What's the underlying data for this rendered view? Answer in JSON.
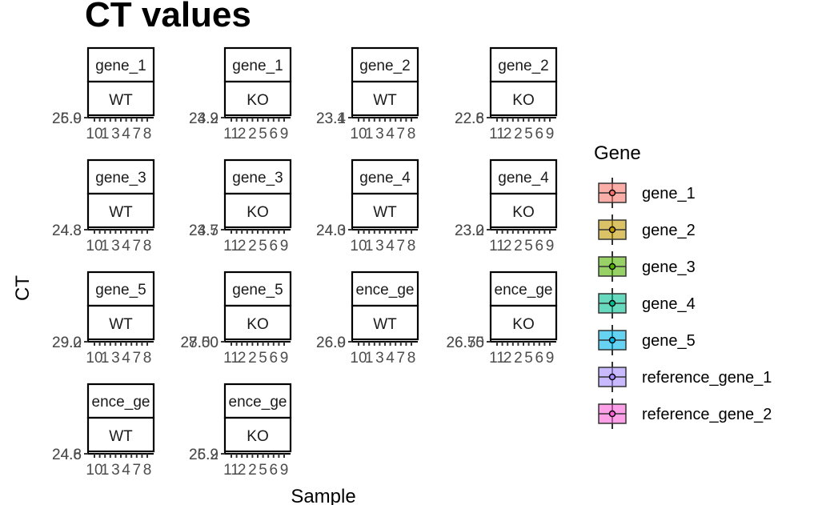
{
  "chart_data": {
    "type": "boxplot",
    "title": "CT values",
    "xlabel": "Sample",
    "ylabel": "CT",
    "panel_columns": 4,
    "legend": {
      "title": "Gene",
      "placement": "right",
      "entries": [
        {
          "name": "gene_1",
          "color": "#F8766D"
        },
        {
          "name": "gene_2",
          "color": "#C49A00"
        },
        {
          "name": "gene_3",
          "color": "#53B400"
        },
        {
          "name": "gene_4",
          "color": "#00C094"
        },
        {
          "name": "gene_5",
          "color": "#00B6EB"
        },
        {
          "name": "reference_gene_1",
          "color": "#A58AFF"
        },
        {
          "name": "reference_gene_2",
          "color": "#FB61D7"
        }
      ]
    },
    "panels": [
      {
        "gene": "gene_1",
        "strip_gene": "gene_1",
        "condition": "WT",
        "y_tick_labels": [
          "25.9",
          "26.0"
        ],
        "x_tick_labels": [
          "10",
          "1",
          "3",
          "4",
          "7",
          "8"
        ]
      },
      {
        "gene": "gene_1",
        "strip_gene": "gene_1",
        "condition": "KO",
        "y_tick_labels": [
          "23.9",
          "24.2"
        ],
        "x_tick_labels": [
          "11",
          "2",
          "2",
          "5",
          "6",
          "9"
        ]
      },
      {
        "gene": "gene_2",
        "strip_gene": "gene_2",
        "condition": "WT",
        "y_tick_labels": [
          "23.1",
          "23.4"
        ],
        "x_tick_labels": [
          "10",
          "1",
          "3",
          "4",
          "7",
          "8"
        ]
      },
      {
        "gene": "gene_2",
        "strip_gene": "gene_2",
        "condition": "KO",
        "y_tick_labels": [
          "22.6",
          "22.8"
        ],
        "x_tick_labels": [
          "11",
          "2",
          "2",
          "5",
          "6",
          "9"
        ]
      },
      {
        "gene": "gene_3",
        "strip_gene": "gene_3",
        "condition": "WT",
        "y_tick_labels": [
          "24.3",
          "24.8"
        ],
        "x_tick_labels": [
          "10",
          "1",
          "3",
          "4",
          "7",
          "8"
        ]
      },
      {
        "gene": "gene_3",
        "strip_gene": "gene_3",
        "condition": "KO",
        "y_tick_labels": [
          "23.5",
          "24.7"
        ],
        "x_tick_labels": [
          "11",
          "2",
          "2",
          "5",
          "6",
          "9"
        ]
      },
      {
        "gene": "gene_4",
        "strip_gene": "gene_4",
        "condition": "WT",
        "y_tick_labels": [
          "24.0",
          "24.3"
        ],
        "x_tick_labels": [
          "10",
          "1",
          "3",
          "4",
          "7",
          "8"
        ]
      },
      {
        "gene": "gene_4",
        "strip_gene": "gene_4",
        "condition": "KO",
        "y_tick_labels": [
          "23.0",
          "23.2"
        ],
        "x_tick_labels": [
          "11",
          "2",
          "2",
          "5",
          "6",
          "9"
        ]
      },
      {
        "gene": "gene_5",
        "strip_gene": "gene_5",
        "condition": "WT",
        "y_tick_labels": [
          "29.0",
          "29.2"
        ],
        "x_tick_labels": [
          "10",
          "1",
          "3",
          "4",
          "7",
          "8"
        ]
      },
      {
        "gene": "gene_5",
        "strip_gene": "gene_5",
        "condition": "KO",
        "y_tick_labels": [
          "27.50",
          "28.00"
        ],
        "x_tick_labels": [
          "11",
          "2",
          "2",
          "5",
          "6",
          "9"
        ]
      },
      {
        "gene": "reference_gene_1",
        "strip_gene": "ence_ge",
        "condition": "WT",
        "y_tick_labels": [
          "26.0",
          "26.9"
        ],
        "x_tick_labels": [
          "10",
          "1",
          "3",
          "4",
          "7",
          "8"
        ]
      },
      {
        "gene": "reference_gene_1",
        "strip_gene": "ence_ge",
        "condition": "KO",
        "y_tick_labels": [
          "26.50",
          "26.75"
        ],
        "x_tick_labels": [
          "11",
          "2",
          "2",
          "5",
          "6",
          "9"
        ]
      },
      {
        "gene": "reference_gene_2",
        "strip_gene": "ence_ge",
        "condition": "WT",
        "y_tick_labels": [
          "24.6",
          "24.8"
        ],
        "x_tick_labels": [
          "10",
          "1",
          "3",
          "4",
          "7",
          "8"
        ]
      },
      {
        "gene": "reference_gene_2",
        "strip_gene": "ence_ge",
        "condition": "KO",
        "y_tick_labels": [
          "25.9",
          "26.2"
        ],
        "x_tick_labels": [
          "11",
          "2",
          "2",
          "5",
          "6",
          "9"
        ]
      }
    ]
  }
}
